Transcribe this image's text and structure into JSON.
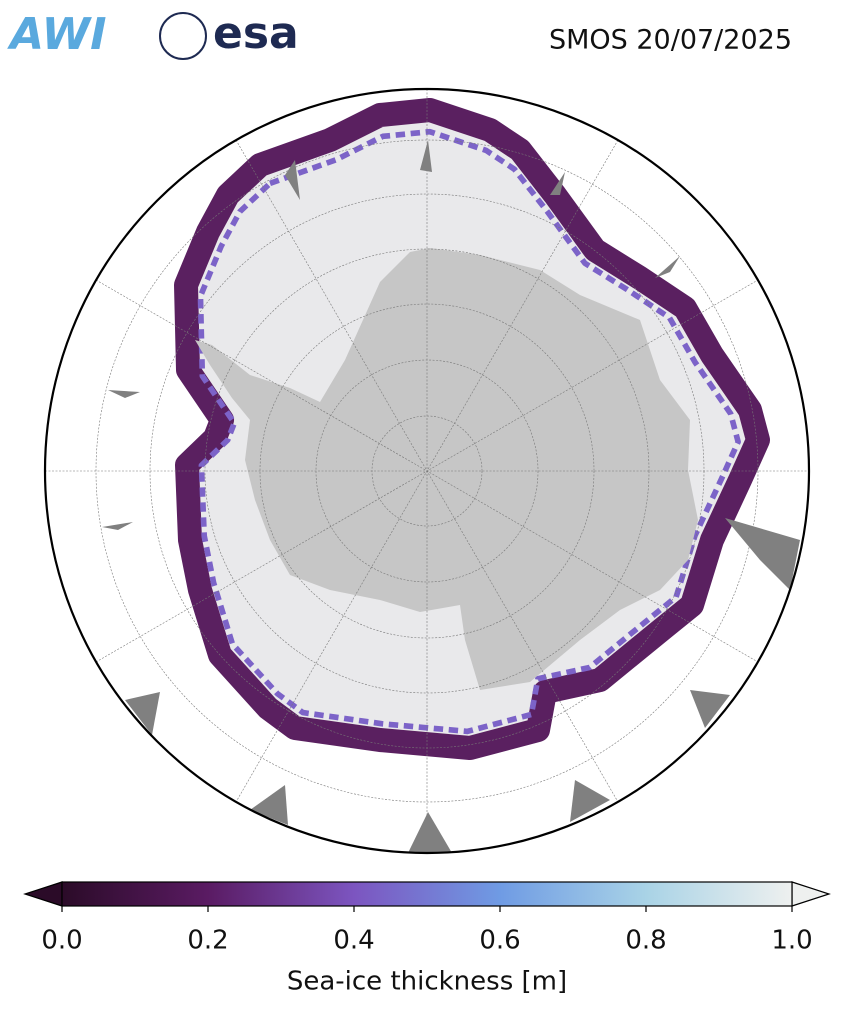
{
  "header": {
    "logos": [
      "AWI",
      "esa"
    ],
    "title": "SMOS 20/07/2025"
  },
  "colorbar": {
    "label": "Sea-ice thickness [m]",
    "lim": [
      0,
      1
    ],
    "ticks": [
      {
        "value": 0,
        "label": "0.0"
      },
      0.2,
      0.4,
      0.6,
      0.8,
      {
        "value": 1,
        "label": "1.0"
      }
    ],
    "colors": [
      "#2b0b28",
      "#5a1b63",
      "#7c55c0",
      "#6f9be4",
      "#a9d3e6",
      "#eef0ef"
    ],
    "extend": "both"
  }
}
